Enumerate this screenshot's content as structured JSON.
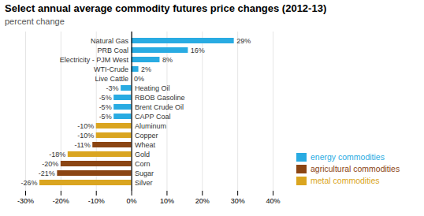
{
  "chart_data": {
    "type": "bar",
    "orientation": "horizontal",
    "title": "Select annual average commodity futures price changes (2012-13)",
    "subtitle": "percent change",
    "categories": [
      "Natural Gas",
      "PRB Coal",
      "Electricity - PJM West",
      "WTI-Crude",
      "Live Cattle",
      "Heating Oil",
      "RBOB Gasoline",
      "Brent Crude Oil",
      "CAPP Coal",
      "Aluminum",
      "Copper",
      "Wheat",
      "Gold",
      "Corn",
      "Sugar",
      "Silver"
    ],
    "series": [
      {
        "name": "energy commodities",
        "color": "#29ABE2",
        "values": [
          29,
          16,
          8,
          2,
          null,
          -3,
          -5,
          -5,
          -5,
          null,
          null,
          null,
          null,
          null,
          null,
          null
        ],
        "value_labels": [
          "29%",
          "16%",
          "8%",
          "2%",
          null,
          "-3%",
          "-5%",
          "-5%",
          "-5%",
          null,
          null,
          null,
          null,
          null,
          null,
          null
        ]
      },
      {
        "name": "agricultural commodities",
        "color": "#8B4513",
        "values": [
          null,
          null,
          null,
          null,
          0,
          null,
          null,
          null,
          null,
          null,
          null,
          -11,
          null,
          -20,
          -21,
          null
        ],
        "value_labels": [
          null,
          null,
          null,
          null,
          "0%",
          null,
          null,
          null,
          null,
          null,
          null,
          "-11%",
          null,
          "-20%",
          "-21%",
          null
        ]
      },
      {
        "name": "metal commodities",
        "color": "#DAA520",
        "values": [
          null,
          null,
          null,
          null,
          null,
          null,
          null,
          null,
          null,
          -10,
          -10,
          null,
          -18,
          null,
          null,
          -26
        ],
        "value_labels": [
          null,
          null,
          null,
          null,
          null,
          null,
          null,
          null,
          null,
          "-10%",
          "-10%",
          null,
          "-18%",
          null,
          null,
          "-26%"
        ]
      }
    ],
    "xlim": [
      -30,
      40
    ],
    "xticks": [
      {
        "value": -30,
        "label": "-30%"
      },
      {
        "value": -20,
        "label": "-20%"
      },
      {
        "value": -10,
        "label": "-10%"
      },
      {
        "value": 0,
        "label": "0%"
      },
      {
        "value": 10,
        "label": "10%"
      },
      {
        "value": 20,
        "label": "20%"
      },
      {
        "value": 30,
        "label": "30%"
      },
      {
        "value": 40,
        "label": "40%"
      }
    ],
    "grid": true,
    "data_labels": true,
    "legend": "lower right"
  }
}
